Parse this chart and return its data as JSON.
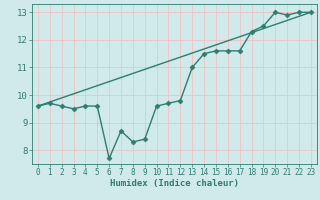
{
  "xlabel": "Humidex (Indice chaleur)",
  "bg_color": "#d0eaec",
  "grid_color": "#e8c8c8",
  "line_color": "#2e7d6e",
  "xlim": [
    -0.5,
    23.5
  ],
  "ylim": [
    7.5,
    13.3
  ],
  "xticks": [
    0,
    1,
    2,
    3,
    4,
    5,
    6,
    7,
    8,
    9,
    10,
    11,
    12,
    13,
    14,
    15,
    16,
    17,
    18,
    19,
    20,
    21,
    22,
    23
  ],
  "yticks": [
    8,
    9,
    10,
    11,
    12,
    13
  ],
  "curve1_x": [
    0,
    1,
    2,
    3,
    4,
    5,
    6,
    7,
    8,
    9,
    10,
    11,
    12,
    13,
    14,
    15,
    16,
    17,
    18,
    19,
    20,
    21,
    22,
    23
  ],
  "curve1_y": [
    9.6,
    9.7,
    9.6,
    9.5,
    9.6,
    9.6,
    7.7,
    8.7,
    8.3,
    8.4,
    9.6,
    9.7,
    9.8,
    11.0,
    11.5,
    11.6,
    11.6,
    11.6,
    12.3,
    12.5,
    13.0,
    12.9,
    13.0,
    13.0
  ],
  "curve2_x": [
    0,
    23
  ],
  "curve2_y": [
    9.6,
    13.0
  ],
  "marker": "D",
  "markersize": 2.5,
  "linewidth": 1.0
}
